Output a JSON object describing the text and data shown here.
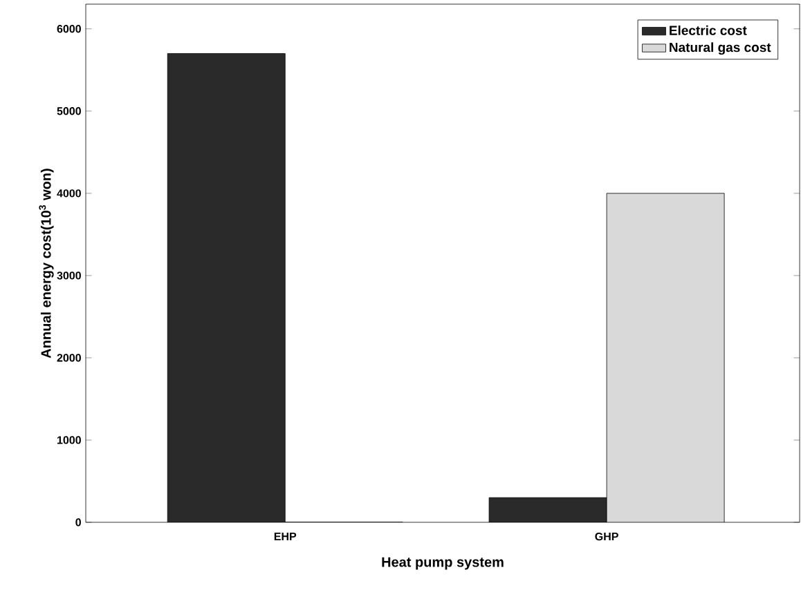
{
  "chart_data": {
    "type": "bar",
    "xlabel": "Heat pump system",
    "ylabel": "Annual energy cost(10$^{3}$ won)",
    "categories": [
      "EHP",
      "GHP"
    ],
    "series": [
      {
        "name": "Electric cost",
        "color": "#2a2a2a",
        "values": [
          5700,
          300
        ]
      },
      {
        "name": "Natural gas cost",
        "color": "#d9d9d9",
        "values": [
          0,
          4000
        ]
      }
    ],
    "ylim": [
      0,
      6300
    ],
    "yticks": [
      0,
      1000,
      2000,
      3000,
      4000,
      5000,
      6000
    ],
    "legend": "top right",
    "grid": false
  }
}
